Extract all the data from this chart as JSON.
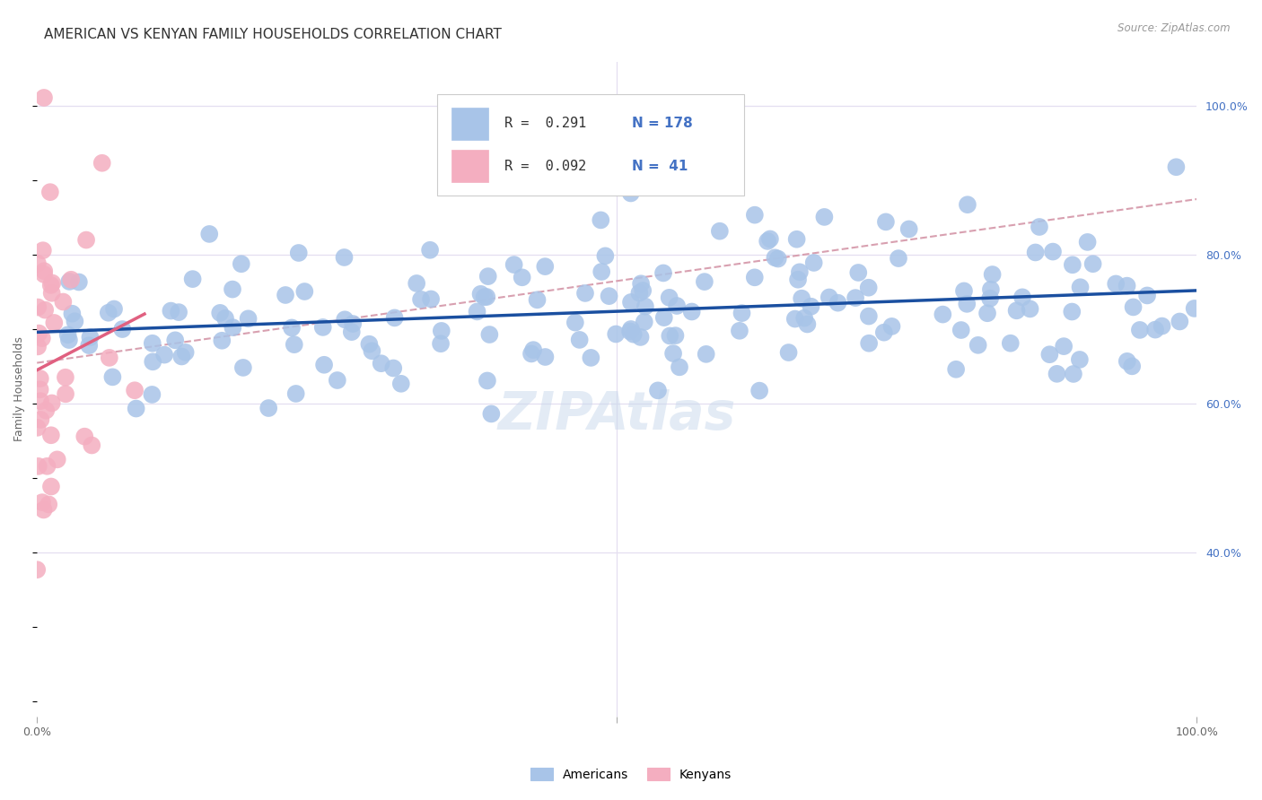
{
  "title": "AMERICAN VS KENYAN FAMILY HOUSEHOLDS CORRELATION CHART",
  "source": "Source: ZipAtlas.com",
  "ylabel": "Family Households",
  "xlim": [
    0.0,
    1.0
  ],
  "ylim": [
    0.18,
    1.06
  ],
  "y_ticks": [
    0.4,
    0.6,
    0.8,
    1.0
  ],
  "y_tick_labels": [
    "40.0%",
    "60.0%",
    "80.0%",
    "100.0%"
  ],
  "x_tick_labels": [
    "0.0%",
    "100.0%"
  ],
  "x_ticks": [
    0.0,
    1.0
  ],
  "american_color": "#a8c4e8",
  "kenyan_color": "#f4aec0",
  "american_line_color": "#1a4fa0",
  "kenyan_line_color": "#e06080",
  "dashed_line_color": "#d8a0b0",
  "grid_color": "#e4dff0",
  "background_color": "#ffffff",
  "legend_R_american": "R =  0.291",
  "legend_N_american": "N = 178",
  "legend_R_kenyan": "R =  0.092",
  "legend_N_kenyan": "N =  41",
  "watermark": "ZIPAtlas",
  "title_fontsize": 11,
  "axis_label_fontsize": 9,
  "tick_fontsize": 9,
  "legend_fontsize": 11,
  "am_line_start_y": 0.668,
  "am_line_end_y": 0.762,
  "ke_line_start_y": 0.668,
  "ke_line_end_y": 0.718,
  "dash_line_start_y": 0.655,
  "dash_line_end_y": 0.875
}
